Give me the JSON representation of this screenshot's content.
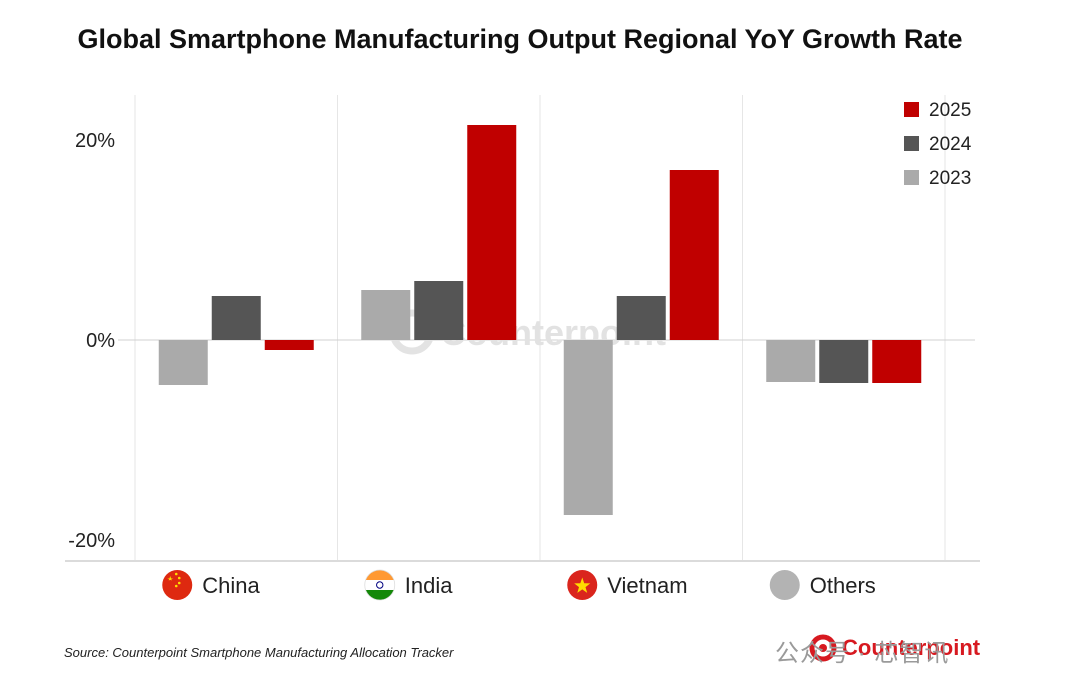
{
  "chart_data": {
    "type": "bar",
    "title": "Global Smartphone Manufacturing Output Regional YoY Growth Rate",
    "categories": [
      "China",
      "India",
      "Vietnam",
      "Others"
    ],
    "series": [
      {
        "name": "2023",
        "color": "#aaaaaa",
        "values": [
          -4.5,
          5.0,
          -17.5,
          -4.2
        ]
      },
      {
        "name": "2024",
        "color": "#555555",
        "values": [
          4.4,
          5.9,
          4.4,
          -4.3
        ]
      },
      {
        "name": "2025",
        "color": "#c00000",
        "values": [
          -1.0,
          21.5,
          17.0,
          -4.3
        ]
      }
    ],
    "legend_order": [
      "2025",
      "2024",
      "2023"
    ],
    "legend_position": "top-right",
    "y_ticks": [
      {
        "value": 20,
        "label": "20%"
      },
      {
        "value": 0,
        "label": "0%"
      },
      {
        "value": -20,
        "label": "-20%"
      }
    ],
    "ylim": [
      -20,
      20
    ],
    "grid": "vertical category separators",
    "category_icons": [
      "china-flag-icon",
      "india-flag-icon",
      "vietnam-flag-icon",
      "globe-gray-icon"
    ],
    "watermark": "Counterpoint"
  },
  "footer": {
    "source": "Source: Counterpoint Smartphone Manufacturing Allocation Tracker",
    "brand": "Counterpoint",
    "overlay_text": "公众号 · 芯智讯"
  }
}
